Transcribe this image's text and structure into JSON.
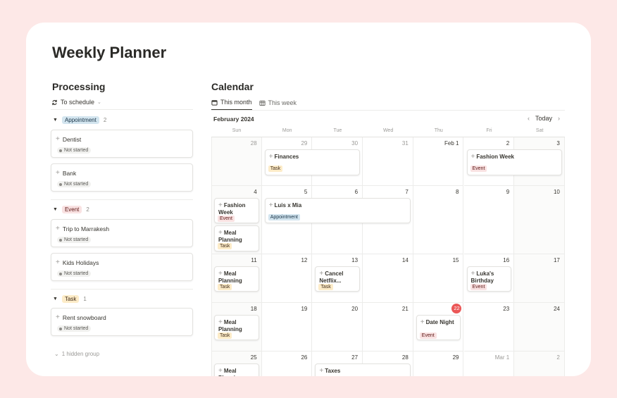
{
  "title": "Weekly Planner",
  "processing": {
    "heading": "Processing",
    "view_tab": "To schedule",
    "groups": [
      {
        "label": "Appointment",
        "count": "2",
        "items": [
          {
            "name": "Dentist",
            "status": "Not started"
          },
          {
            "name": "Bank",
            "status": "Not started"
          }
        ]
      },
      {
        "label": "Event",
        "count": "2",
        "items": [
          {
            "name": "Trip to Marrakesh",
            "status": "Not started"
          },
          {
            "name": "Kids Holidays",
            "status": "Not started"
          }
        ]
      },
      {
        "label": "Task",
        "count": "1",
        "items": [
          {
            "name": "Rent snowboard",
            "status": "Not started"
          }
        ]
      }
    ],
    "hidden_group": "1 hidden group"
  },
  "calendar": {
    "heading": "Calendar",
    "tabs": [
      {
        "label": "This month"
      },
      {
        "label": "This week"
      }
    ],
    "month_label": "February 2024",
    "today_label": "Today",
    "weekdays": [
      "Sun",
      "Mon",
      "Tue",
      "Wed",
      "Thu",
      "Fri",
      "Sat"
    ],
    "weeks": [
      [
        "28",
        "29",
        "30",
        "31",
        "Feb 1",
        "2",
        "3"
      ],
      [
        "4",
        "5",
        "6",
        "7",
        "8",
        "9",
        "10"
      ],
      [
        "11",
        "12",
        "13",
        "14",
        "15",
        "16",
        "17"
      ],
      [
        "18",
        "19",
        "20",
        "21",
        "22",
        "23",
        "24"
      ],
      [
        "25",
        "26",
        "27",
        "28",
        "29",
        "Mar 1",
        "2"
      ]
    ],
    "events": [
      {
        "title": "Finances",
        "tag": "Task"
      },
      {
        "title": "Fashion Week",
        "tag": "Event"
      },
      {
        "title": "Fashion Week",
        "tag": "Event"
      },
      {
        "title": "Luis x Mia",
        "tag": "Appointment"
      },
      {
        "title": "Meal Planning",
        "tag": "Task"
      },
      {
        "title": "Meal Planning",
        "tag": "Task"
      },
      {
        "title": "Cancel Netflix...",
        "tag": "Task"
      },
      {
        "title": "Luka's Birthday",
        "tag": "Event"
      },
      {
        "title": "Meal Planning",
        "tag": "Task"
      },
      {
        "title": "Date Night",
        "tag": "Event"
      },
      {
        "title": "Meal Planning",
        "tag": ""
      },
      {
        "title": "Taxes",
        "tag": ""
      }
    ],
    "colors": {
      "task": "#fdecc8",
      "event": "#f9e2e2",
      "appointment": "#d3e5ef",
      "today": "#eb5757"
    }
  }
}
